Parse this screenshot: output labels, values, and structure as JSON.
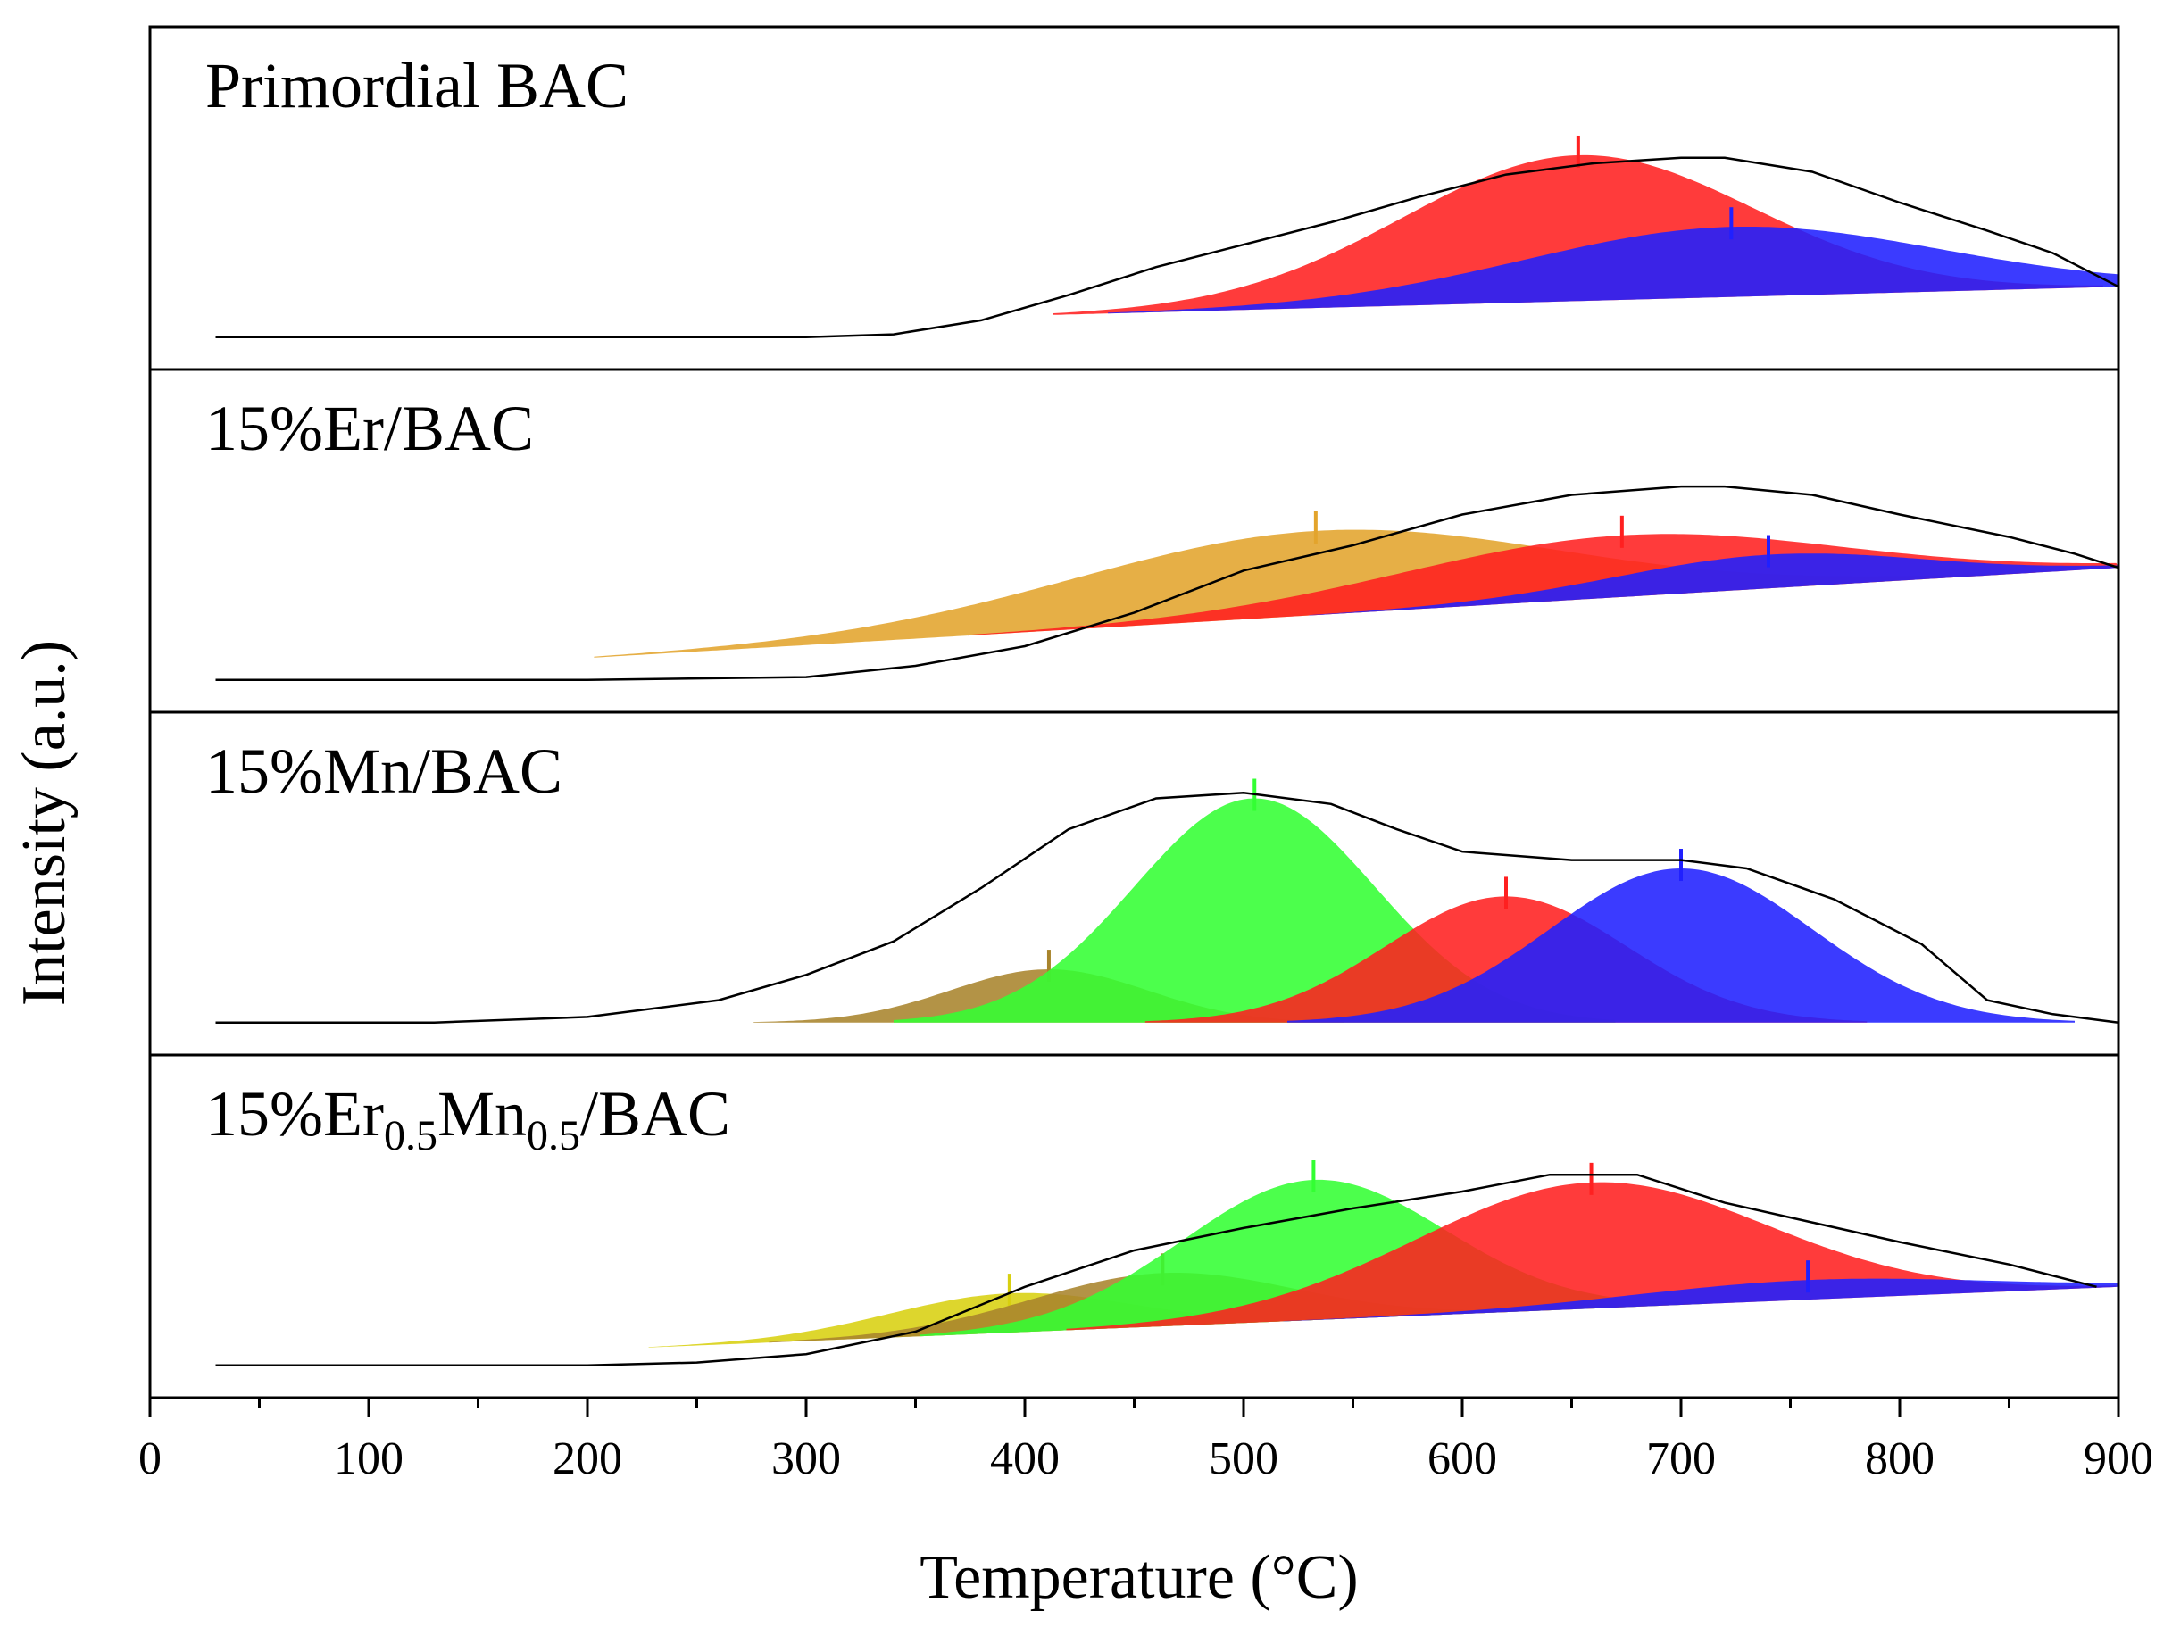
{
  "chart_data": {
    "type": "area",
    "xlabel": "Temperature (°C)",
    "ylabel": "Intensity (a.u.)",
    "xlim": [
      0,
      900
    ],
    "x_ticks": [
      "0",
      "100",
      "200",
      "300",
      "400",
      "500",
      "600",
      "700",
      "800",
      "900"
    ],
    "grid": false,
    "legend": "none",
    "colors": {
      "red": "#ff2020",
      "blue": "#2020ff",
      "orange": "#e3a42c",
      "green": "#33ff33",
      "olive": "#a8842c",
      "yellow": "#d8d010",
      "envelope": "#000000"
    },
    "panels": [
      {
        "label_parts": [
          {
            "t": "Primordial BAC"
          }
        ],
        "baseline_start": 0.02,
        "baseline_end": 0.2,
        "envelope": [
          [
            30,
            0.02
          ],
          [
            150,
            0.02
          ],
          [
            200,
            0.02
          ],
          [
            300,
            0.02
          ],
          [
            340,
            0.03
          ],
          [
            380,
            0.08
          ],
          [
            420,
            0.17
          ],
          [
            460,
            0.27
          ],
          [
            500,
            0.35
          ],
          [
            540,
            0.43
          ],
          [
            580,
            0.52
          ],
          [
            620,
            0.6
          ],
          [
            660,
            0.64
          ],
          [
            700,
            0.66
          ],
          [
            720,
            0.66
          ],
          [
            760,
            0.61
          ],
          [
            800,
            0.5
          ],
          [
            840,
            0.4
          ],
          [
            870,
            0.32
          ],
          [
            900,
            0.2
          ]
        ],
        "peaks": [
          {
            "color": "red",
            "center": 653,
            "height": 0.52,
            "width": 80
          },
          {
            "color": "blue",
            "center": 723,
            "height": 0.25,
            "width": 95
          }
        ]
      },
      {
        "label_parts": [
          {
            "t": "15%Er/BAC"
          }
        ],
        "baseline_start": 0.02,
        "baseline_end": 0.42,
        "envelope": [
          [
            30,
            0.02
          ],
          [
            200,
            0.02
          ],
          [
            300,
            0.03
          ],
          [
            350,
            0.07
          ],
          [
            400,
            0.14
          ],
          [
            450,
            0.26
          ],
          [
            500,
            0.41
          ],
          [
            550,
            0.5
          ],
          [
            600,
            0.61
          ],
          [
            650,
            0.68
          ],
          [
            700,
            0.71
          ],
          [
            720,
            0.71
          ],
          [
            760,
            0.68
          ],
          [
            800,
            0.61
          ],
          [
            850,
            0.53
          ],
          [
            880,
            0.47
          ],
          [
            900,
            0.42
          ]
        ],
        "peaks": [
          {
            "color": "orange",
            "center": 533,
            "height": 0.3,
            "width": 110
          },
          {
            "color": "red",
            "center": 673,
            "height": 0.22,
            "width": 100
          },
          {
            "color": "blue",
            "center": 740,
            "height": 0.12,
            "width": 70
          }
        ]
      },
      {
        "label_parts": [
          {
            "t": "15%Mn/BAC"
          }
        ],
        "baseline_start": 0.02,
        "baseline_end": 0.02,
        "envelope": [
          [
            30,
            0.02
          ],
          [
            130,
            0.02
          ],
          [
            200,
            0.04
          ],
          [
            260,
            0.1
          ],
          [
            300,
            0.19
          ],
          [
            340,
            0.31
          ],
          [
            380,
            0.5
          ],
          [
            420,
            0.71
          ],
          [
            460,
            0.82
          ],
          [
            500,
            0.84
          ],
          [
            540,
            0.8
          ],
          [
            570,
            0.71
          ],
          [
            600,
            0.63
          ],
          [
            650,
            0.6
          ],
          [
            700,
            0.6
          ],
          [
            730,
            0.57
          ],
          [
            770,
            0.46
          ],
          [
            810,
            0.3
          ],
          [
            840,
            0.1
          ],
          [
            870,
            0.05
          ],
          [
            900,
            0.02
          ]
        ],
        "peaks": [
          {
            "color": "olive",
            "center": 411,
            "height": 0.19,
            "width": 45
          },
          {
            "color": "green",
            "center": 505,
            "height": 0.8,
            "width": 55
          },
          {
            "color": "red",
            "center": 620,
            "height": 0.45,
            "width": 55
          },
          {
            "color": "blue",
            "center": 700,
            "height": 0.55,
            "width": 60
          }
        ]
      },
      {
        "label_parts": [
          {
            "t": "15%Er"
          },
          {
            "t": "0.5",
            "sub": true
          },
          {
            "t": "Mn"
          },
          {
            "t": "0.5",
            "sub": true
          },
          {
            "t": "/BAC"
          }
        ],
        "baseline_start": 0.02,
        "baseline_end": 0.3,
        "envelope": [
          [
            30,
            0.02
          ],
          [
            200,
            0.02
          ],
          [
            250,
            0.03
          ],
          [
            300,
            0.06
          ],
          [
            350,
            0.14
          ],
          [
            400,
            0.3
          ],
          [
            450,
            0.43
          ],
          [
            500,
            0.51
          ],
          [
            550,
            0.58
          ],
          [
            600,
            0.64
          ],
          [
            640,
            0.7
          ],
          [
            680,
            0.7
          ],
          [
            720,
            0.6
          ],
          [
            760,
            0.53
          ],
          [
            800,
            0.46
          ],
          [
            850,
            0.38
          ],
          [
            890,
            0.3
          ]
        ],
        "peaks": [
          {
            "color": "yellow",
            "center": 393,
            "height": 0.14,
            "width": 55
          },
          {
            "color": "olive",
            "center": 463,
            "height": 0.19,
            "width": 60
          },
          {
            "color": "green",
            "center": 532,
            "height": 0.5,
            "width": 60
          },
          {
            "color": "red",
            "center": 659,
            "height": 0.45,
            "width": 80
          },
          {
            "color": "blue",
            "center": 758,
            "height": 0.07,
            "width": 80
          }
        ]
      }
    ]
  }
}
